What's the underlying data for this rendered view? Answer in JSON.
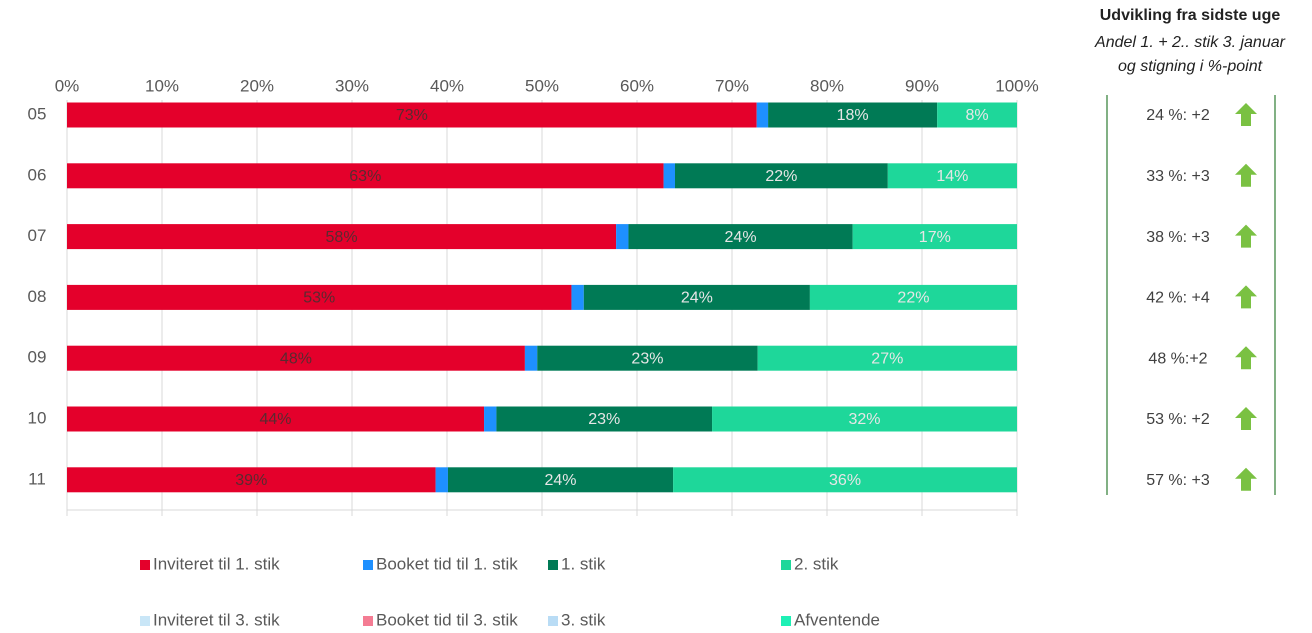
{
  "chart_data": {
    "type": "stacked_barh",
    "categories": [
      "05",
      "06",
      "07",
      "08",
      "09",
      "10",
      "11"
    ],
    "series": [
      {
        "name": "Inviteret til 1. stik",
        "color": "#e4002b",
        "values": [
          72.6,
          62.8,
          57.8,
          53.1,
          48.2,
          43.9,
          38.8
        ],
        "value_labels": [
          "73%",
          "63%",
          "58%",
          "53%",
          "48%",
          "44%",
          "39%"
        ]
      },
      {
        "name": "Booket tid til 1. stik",
        "color": "#1e90ff",
        "values": [
          1.2,
          1.2,
          1.3,
          1.3,
          1.3,
          1.3,
          1.3
        ]
      },
      {
        "name": "1. stik",
        "color": "#007a55",
        "values": [
          17.8,
          22.4,
          23.6,
          23.8,
          23.2,
          22.7,
          23.7
        ],
        "value_labels": [
          "18%",
          "22%",
          "24%",
          "24%",
          "23%",
          "23%",
          "24%"
        ]
      },
      {
        "name": "2. stik",
        "color": "#1ed79a",
        "values": [
          8.4,
          13.6,
          17.3,
          21.8,
          27.3,
          32.1,
          36.2
        ],
        "value_labels": [
          "8%",
          "14%",
          "17%",
          "22%",
          "27%",
          "32%",
          "36%"
        ]
      }
    ],
    "legend_extra": [
      {
        "name": "Inviteret til 3. stik",
        "color": "#c9e6f7"
      },
      {
        "name": "Booket tid til 3. stik",
        "color": "#f47c93"
      },
      {
        "name": "3. stik",
        "color": "#b9dcf5"
      },
      {
        "name": "Afventende",
        "color": "#1ef0b5"
      }
    ],
    "xlim": [
      0,
      100
    ],
    "xticks": [
      {
        "value": 0,
        "label": "0%"
      },
      {
        "value": 10,
        "label": "10%"
      },
      {
        "value": 20,
        "label": "20%"
      },
      {
        "value": 30,
        "label": "30%"
      },
      {
        "value": 40,
        "label": "40%"
      },
      {
        "value": 50,
        "label": "50%"
      },
      {
        "value": 60,
        "label": "60%"
      },
      {
        "value": 70,
        "label": "70%"
      },
      {
        "value": 80,
        "label": "80%"
      },
      {
        "value": 90,
        "label": "90%"
      },
      {
        "value": 100,
        "label": "100%"
      }
    ],
    "grid": true
  },
  "side_panel": {
    "title": "Udvikling fra sidste uge",
    "subtitle": [
      "Andel 1. + 2.. stik 3. januar",
      "og stigning i %-point"
    ],
    "rows": [
      "24 %: +2",
      "33 %: +3",
      "38 %: +3",
      "42 %: +4",
      "48 %:+2",
      "53 %: +2",
      "57 %: +3"
    ]
  }
}
